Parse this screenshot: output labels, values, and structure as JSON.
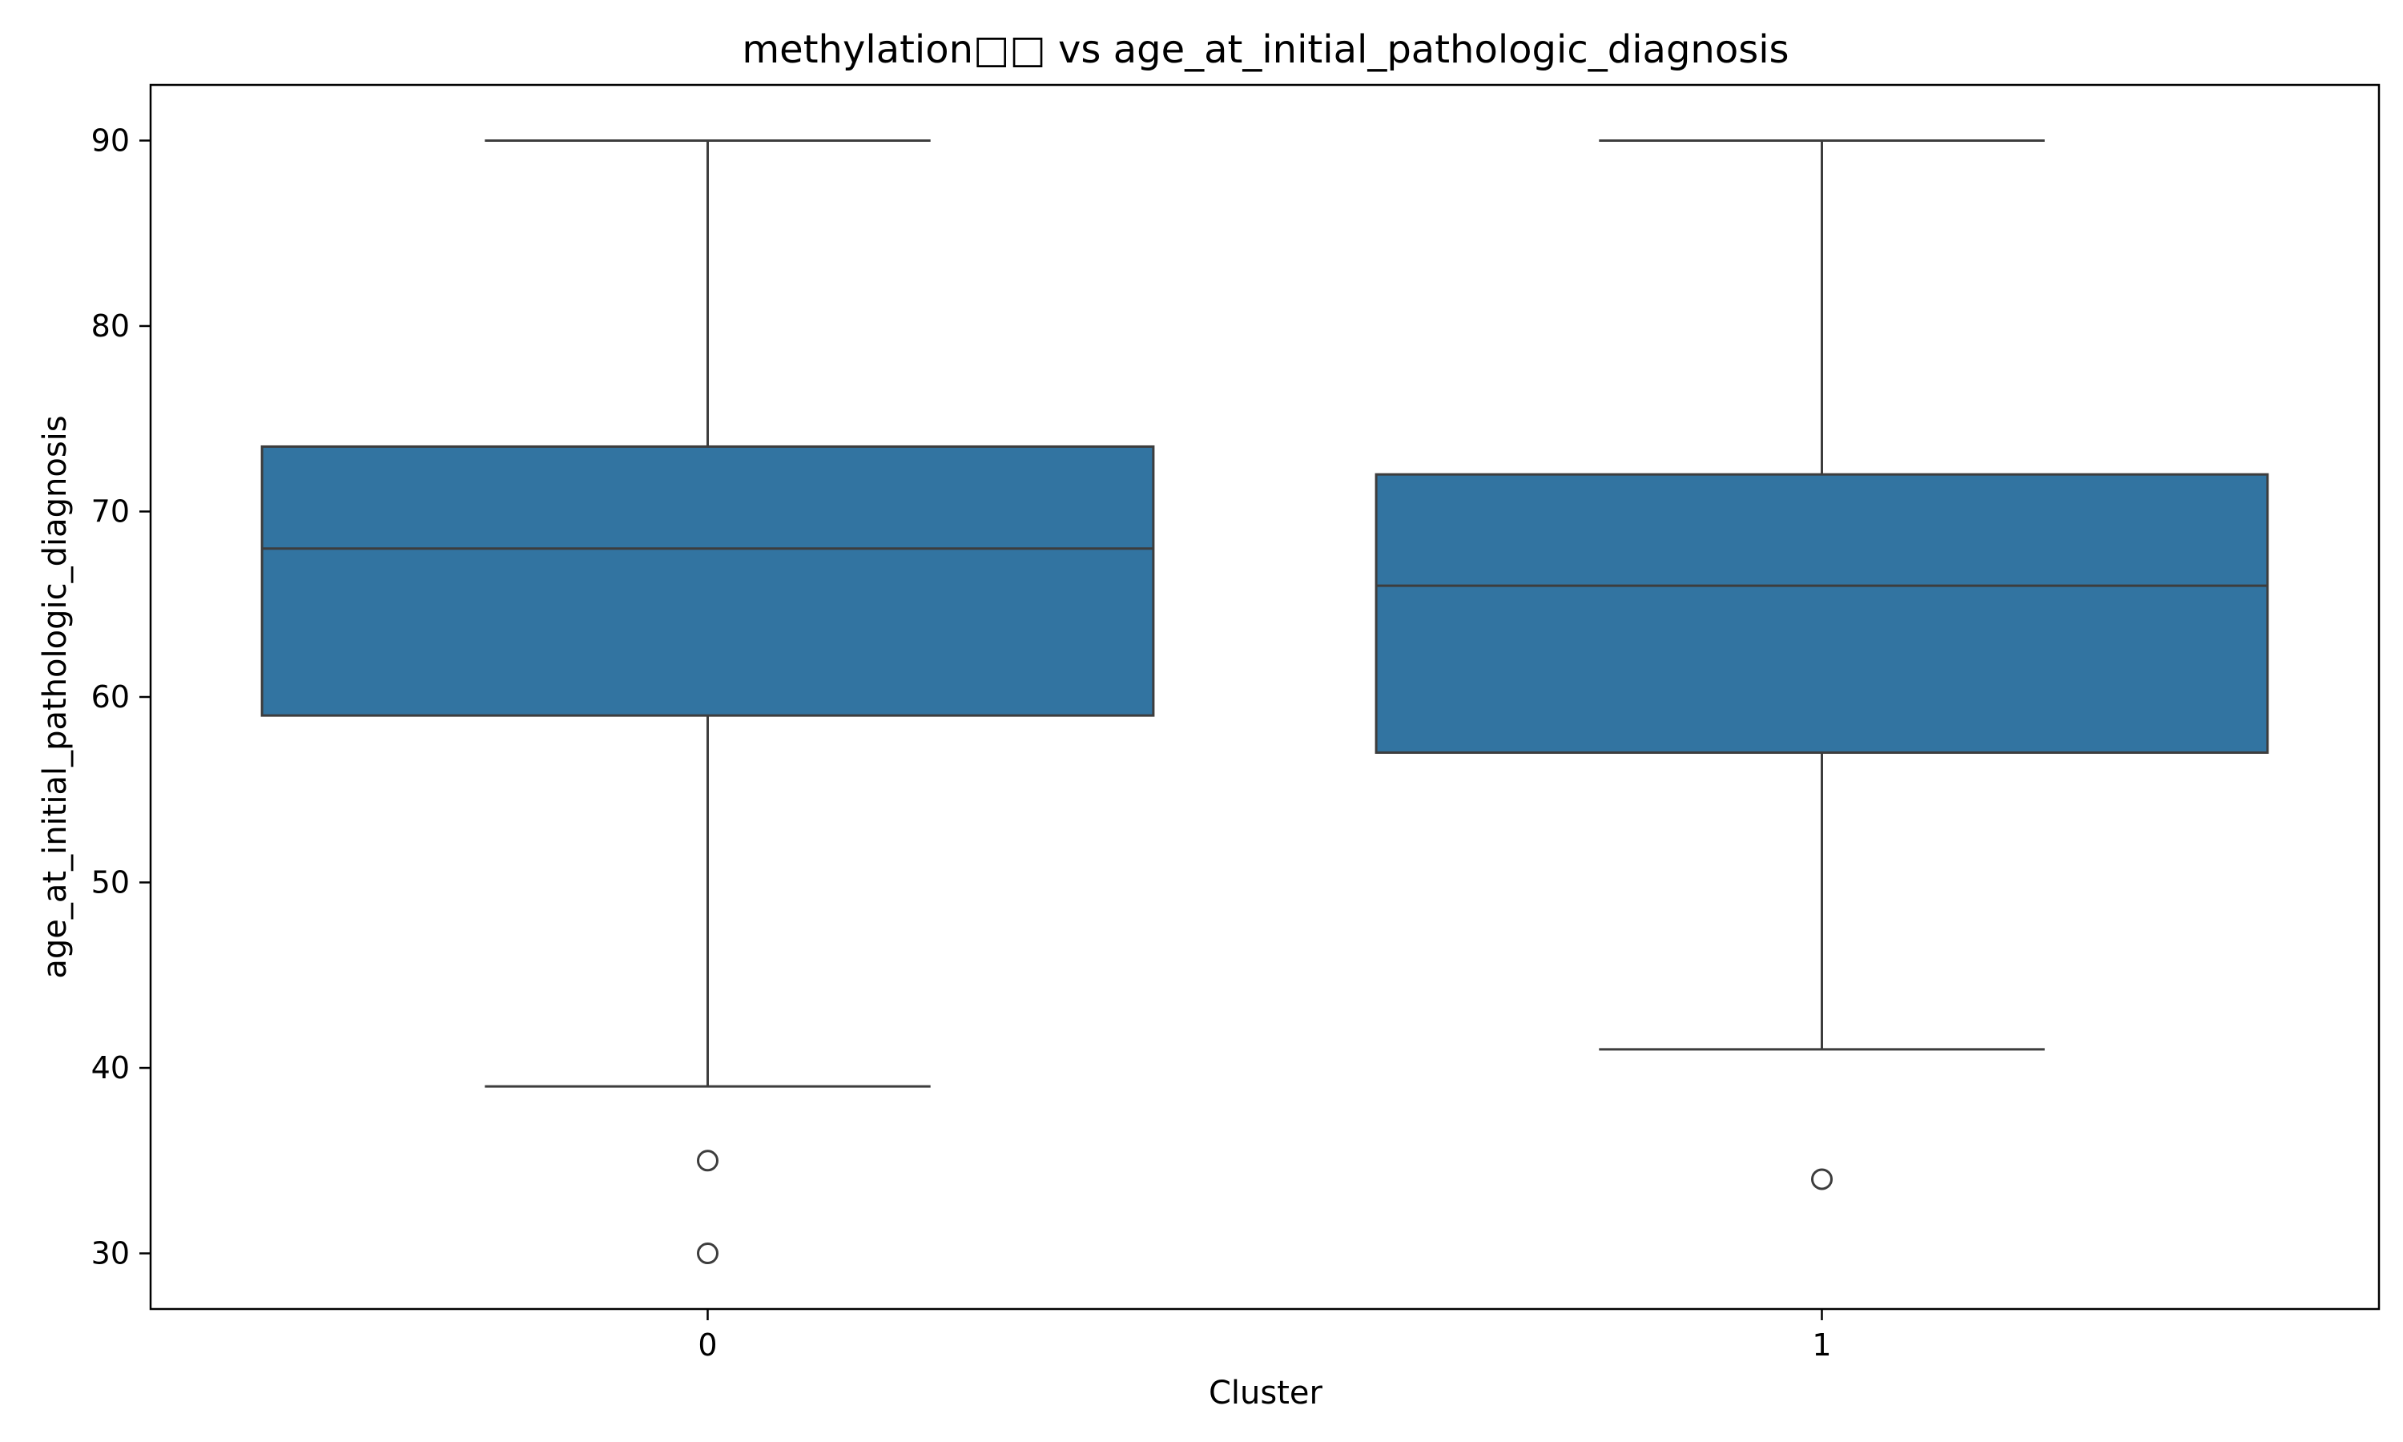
{
  "chart_data": {
    "type": "box",
    "title": "methylation□□ vs age_at_initial_pathologic_diagnosis",
    "xlabel": "Cluster",
    "ylabel": "age_at_initial_pathologic_diagnosis",
    "ylim": [
      27,
      93
    ],
    "yticks": [
      30,
      40,
      50,
      60,
      70,
      80,
      90
    ],
    "categories": [
      "0",
      "1"
    ],
    "boxes": [
      {
        "category": "0",
        "whisker_low": 39,
        "q1": 59,
        "median": 68,
        "q3": 73.5,
        "whisker_high": 90,
        "outliers": [
          35,
          30
        ]
      },
      {
        "category": "1",
        "whisker_low": 41,
        "q1": 57,
        "median": 66,
        "q3": 72,
        "whisker_high": 90,
        "outliers": [
          34
        ]
      }
    ],
    "box_color": "#3274a1",
    "line_color": "#3d3d3d",
    "grid": false,
    "legend": "none"
  }
}
